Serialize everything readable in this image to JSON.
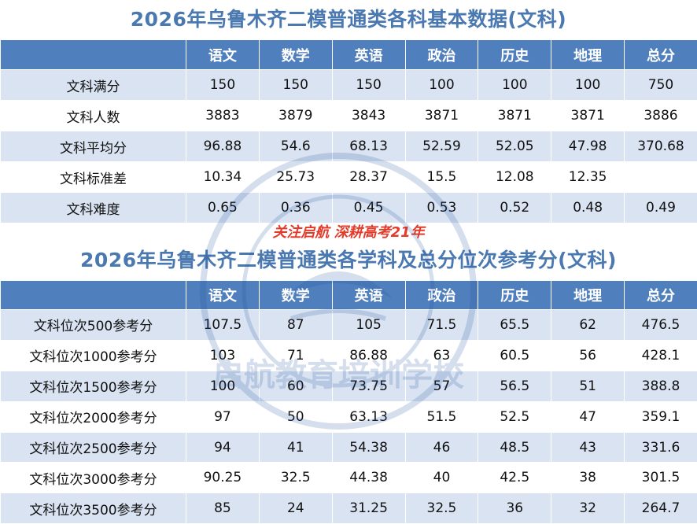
{
  "title1": "2026年乌鲁木齐二模普通类各科基本数据(文科)",
  "title2": "2026年乌鲁木齐二模普通类各学科及总分位次参考分(文科)",
  "slogan": "关注启航 深耕高考21年",
  "watermark_text": "启航教育培训学校",
  "table1": {
    "headers": [
      "",
      "语文",
      "数学",
      "英语",
      "政治",
      "历史",
      "地理",
      "总分"
    ],
    "rows": [
      [
        "文科满分",
        "150",
        "150",
        "150",
        "100",
        "100",
        "100",
        "750"
      ],
      [
        "文科人数",
        "3883",
        "3879",
        "3843",
        "3871",
        "3871",
        "3871",
        "3886"
      ],
      [
        "文科平均分",
        "96.88",
        "54.6",
        "68.13",
        "52.59",
        "52.05",
        "47.98",
        "370.68"
      ],
      [
        "文科标准差",
        "10.34",
        "25.73",
        "28.37",
        "15.5",
        "12.08",
        "12.35",
        ""
      ],
      [
        "文科难度",
        "0.65",
        "0.36",
        "0.45",
        "0.53",
        "0.52",
        "0.48",
        "0.49"
      ]
    ]
  },
  "table2": {
    "headers": [
      "",
      "语文",
      "数学",
      "英语",
      "政治",
      "历史",
      "地理",
      "总分"
    ],
    "rows": [
      [
        "文科位次500参考分",
        "107.5",
        "87",
        "105",
        "71.5",
        "65.5",
        "62",
        "476.5"
      ],
      [
        "文科位次1000参考分",
        "103",
        "71",
        "86.88",
        "63",
        "60.5",
        "56",
        "428.1"
      ],
      [
        "文科位次1500参考分",
        "100",
        "60",
        "73.75",
        "57",
        "56.5",
        "51",
        "388.8"
      ],
      [
        "文科位次2000参考分",
        "97",
        "50",
        "63.13",
        "51.5",
        "52.5",
        "47",
        "359.1"
      ],
      [
        "文科位次2500参考分",
        "94",
        "41",
        "54.38",
        "46",
        "48.5",
        "43",
        "331.6"
      ],
      [
        "文科位次3000参考分",
        "90.25",
        "32.5",
        "44.38",
        "40",
        "42.5",
        "38",
        "301.5"
      ],
      [
        "文科位次3500参考分",
        "85",
        "24",
        "31.25",
        "32.5",
        "36",
        "32",
        "264.7"
      ]
    ]
  }
}
